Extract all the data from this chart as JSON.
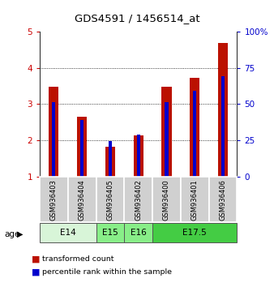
{
  "title": "GDS4591 / 1456514_at",
  "samples": [
    "GSM936403",
    "GSM936404",
    "GSM936405",
    "GSM936402",
    "GSM936400",
    "GSM936401",
    "GSM936406"
  ],
  "transformed_count": [
    3.48,
    2.65,
    1.83,
    2.13,
    3.48,
    3.72,
    4.68
  ],
  "percentile_rank": [
    3.06,
    2.55,
    1.97,
    2.16,
    3.06,
    3.37,
    3.77
  ],
  "bar_color_red": "#bb1100",
  "bar_color_blue": "#0000cc",
  "ylim_left": [
    1,
    5
  ],
  "ylim_right": [
    0,
    100
  ],
  "yticks_left": [
    1,
    2,
    3,
    4,
    5
  ],
  "yticks_right": [
    0,
    25,
    50,
    75,
    100
  ],
  "age_groups": [
    {
      "label": "E14",
      "start": 0,
      "end": 2,
      "color": "#d8f5d8"
    },
    {
      "label": "E15",
      "start": 2,
      "end": 3,
      "color": "#88ee88"
    },
    {
      "label": "E16",
      "start": 3,
      "end": 4,
      "color": "#88ee88"
    },
    {
      "label": "E17.5",
      "start": 4,
      "end": 7,
      "color": "#44cc44"
    }
  ],
  "tick_label_color_left": "#cc0000",
  "tick_label_color_right": "#0000cc"
}
